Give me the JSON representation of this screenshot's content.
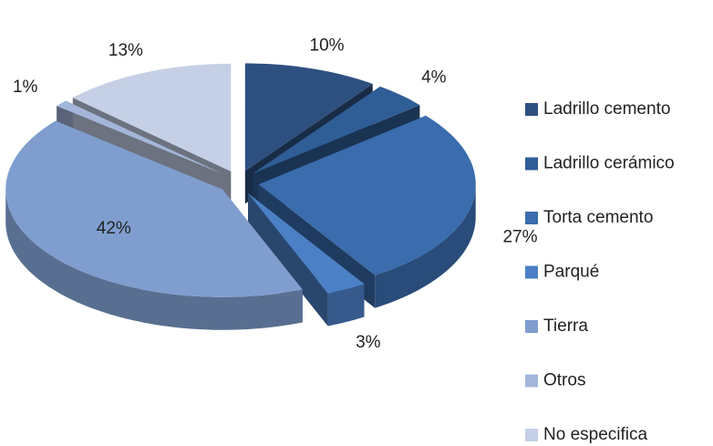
{
  "chart_data": {
    "type": "pie",
    "categories": [
      "Ladrillo cemento",
      "Ladrillo cerámico",
      "Torta cemento",
      "Parqué",
      "Tierra",
      "Otros",
      "No especifica"
    ],
    "values": [
      10,
      4,
      27,
      3,
      42,
      1,
      13
    ],
    "value_labels": [
      "10%",
      "4%",
      "27%",
      "3%",
      "42%",
      "1%",
      "13%"
    ],
    "colors": [
      "#2e5080",
      "#2f5d96",
      "#3a6cae",
      "#4b80c6",
      "#7f9ecf",
      "#a3b6da",
      "#c5d0e6"
    ],
    "legend": "right"
  }
}
